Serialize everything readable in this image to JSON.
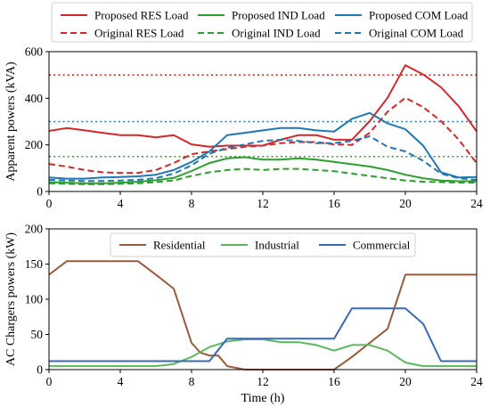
{
  "chart_data": [
    {
      "type": "line",
      "ylabel": "Apparent powers (kVA)",
      "xlabel": "",
      "xlim": [
        0,
        24
      ],
      "ylim": [
        0,
        600
      ],
      "xticks": [
        0,
        4,
        8,
        12,
        16,
        20,
        24
      ],
      "yticks": [
        0,
        200,
        400,
        600
      ],
      "grid": false,
      "legend_position": "top, outside axes, 3 columns",
      "x": [
        0,
        1,
        2,
        3,
        4,
        5,
        6,
        7,
        8,
        9,
        10,
        11,
        12,
        13,
        14,
        15,
        16,
        17,
        18,
        19,
        20,
        21,
        22,
        23,
        24
      ],
      "series": [
        {
          "name": "Proposed RES Load",
          "color": "#d62728",
          "style": "solid",
          "values": [
            260,
            272,
            262,
            252,
            242,
            242,
            232,
            242,
            202,
            192,
            197,
            197,
            197,
            222,
            242,
            242,
            222,
            222,
            302,
            402,
            542,
            502,
            447,
            365,
            258
          ]
        },
        {
          "name": "Original RES Load",
          "color": "#d62728",
          "style": "dashed",
          "values": [
            118,
            107,
            92,
            82,
            80,
            80,
            92,
            122,
            160,
            172,
            182,
            192,
            197,
            207,
            212,
            212,
            202,
            200,
            252,
            342,
            402,
            362,
            302,
            222,
            122
          ]
        },
        {
          "name": "Proposed IND Load",
          "color": "#2ca02c",
          "style": "solid",
          "values": [
            40,
            38,
            35,
            35,
            38,
            42,
            48,
            58,
            88,
            122,
            142,
            147,
            137,
            137,
            142,
            137,
            127,
            117,
            107,
            92,
            72,
            57,
            47,
            44,
            44
          ]
        },
        {
          "name": "Original IND Load",
          "color": "#2ca02c",
          "style": "dashed",
          "values": [
            35,
            33,
            31,
            31,
            33,
            35,
            40,
            47,
            67,
            82,
            92,
            97,
            92,
            97,
            97,
            92,
            87,
            77,
            67,
            57,
            47,
            42,
            40,
            38,
            38
          ]
        },
        {
          "name": "Proposed COM Load",
          "color": "#1f77b4",
          "style": "solid",
          "values": [
            60,
            55,
            55,
            60,
            62,
            65,
            72,
            92,
            127,
            172,
            242,
            252,
            262,
            272,
            272,
            262,
            257,
            312,
            337,
            292,
            267,
            197,
            82,
            60,
            62
          ]
        },
        {
          "name": "Original COM Load",
          "color": "#1f77b4",
          "style": "dashed",
          "values": [
            50,
            47,
            45,
            45,
            47,
            50,
            57,
            77,
            112,
            162,
            187,
            202,
            217,
            222,
            217,
            207,
            207,
            217,
            237,
            192,
            172,
            132,
            77,
            57,
            50
          ]
        }
      ],
      "reference_lines": [
        {
          "y": 500,
          "color": "#d62728",
          "style": "dotted"
        },
        {
          "y": 300,
          "color": "#1f77b4",
          "style": "dotted"
        },
        {
          "y": 150,
          "color": "#2ca02c",
          "style": "dotted"
        }
      ]
    },
    {
      "type": "line",
      "ylabel": "AC Chargers powers (kW)",
      "xlabel": "Time (h)",
      "xlim": [
        0,
        24
      ],
      "ylim": [
        0,
        200
      ],
      "xticks": [
        0,
        4,
        8,
        12,
        16,
        20,
        24
      ],
      "yticks": [
        0,
        50,
        100,
        150,
        200
      ],
      "grid": false,
      "legend_position": "top-center, inside axes, 3 columns",
      "series": [
        {
          "name": "Residential",
          "color": "#9c5a3c",
          "style": "solid",
          "x": [
            0,
            1,
            2,
            3,
            4,
            5,
            6,
            7,
            8,
            8.5,
            9,
            9.5,
            10,
            11,
            12,
            13,
            14,
            15,
            16,
            17,
            18,
            19,
            20,
            21,
            22,
            23,
            24
          ],
          "values": [
            135,
            154,
            154,
            154,
            154,
            154,
            135,
            115,
            38,
            24,
            20,
            20,
            5,
            0,
            0,
            0,
            0,
            0,
            0,
            18,
            38,
            58,
            135,
            135,
            135,
            135,
            135
          ]
        },
        {
          "name": "Industrial",
          "color": "#5cb85c",
          "style": "solid",
          "x": [
            0,
            1,
            2,
            3,
            4,
            5,
            6,
            7,
            8,
            9,
            10,
            11,
            12,
            13,
            14,
            15,
            16,
            17,
            18,
            19,
            20,
            21,
            22,
            23,
            24
          ],
          "values": [
            5,
            5,
            5,
            5,
            5,
            5,
            5,
            8,
            18,
            32,
            40,
            43,
            43,
            39,
            39,
            35,
            27,
            35,
            35,
            27,
            10,
            5,
            5,
            5,
            5
          ]
        },
        {
          "name": "Commercial",
          "color": "#3a6ab4",
          "style": "solid",
          "x": [
            0,
            1,
            2,
            3,
            4,
            5,
            6,
            7,
            8,
            9,
            10,
            11,
            12,
            13,
            14,
            15,
            16,
            17,
            18,
            19,
            20,
            21,
            22,
            23,
            24
          ],
          "values": [
            12,
            12,
            12,
            12,
            12,
            12,
            12,
            12,
            12,
            12,
            44,
            44,
            44,
            44,
            44,
            44,
            44,
            87,
            87,
            87,
            87,
            65,
            12,
            12,
            12
          ]
        }
      ]
    }
  ]
}
